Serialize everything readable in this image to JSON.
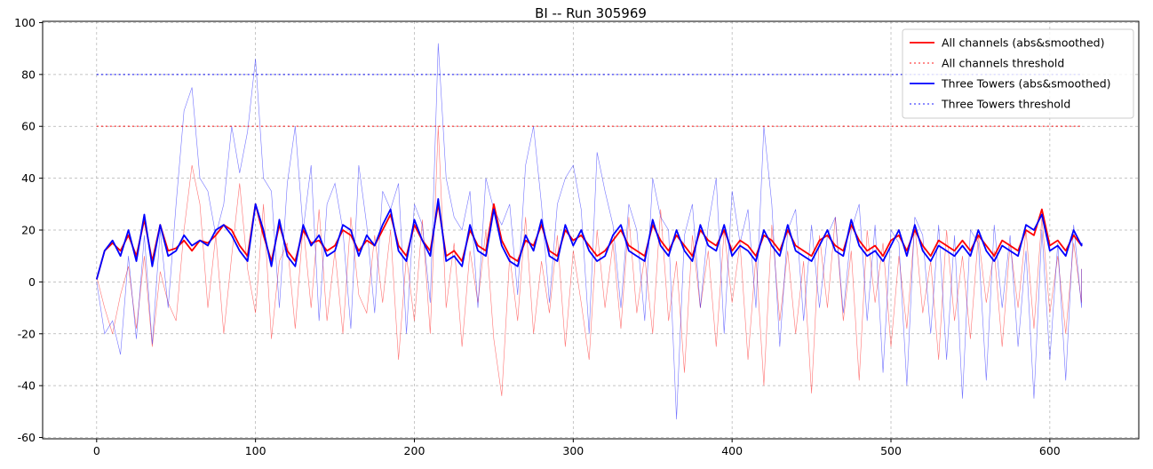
{
  "chart_data": {
    "type": "line",
    "title": "BI -- Run 305969",
    "xlabel": "",
    "ylabel": "",
    "xlim": [
      -34,
      656
    ],
    "ylim": [
      -60.5,
      100.5
    ],
    "xticks": [
      0,
      100,
      200,
      300,
      400,
      500,
      600
    ],
    "yticks": [
      -60,
      -40,
      -20,
      0,
      20,
      40,
      60,
      80,
      100
    ],
    "grid": true,
    "legend_position": "top-right",
    "colors": {
      "all": "#ff0000",
      "towers": "#0000ff"
    },
    "series": [
      {
        "name": "All channels (abs&smoothed)",
        "style": "solid",
        "color": "#ff0000",
        "x_step": 5,
        "values": [
          1,
          12,
          15,
          12,
          18,
          10,
          24,
          8,
          22,
          12,
          13,
          16,
          12,
          16,
          15,
          18,
          22,
          20,
          14,
          10,
          30,
          18,
          8,
          22,
          12,
          8,
          20,
          15,
          16,
          12,
          14,
          20,
          18,
          12,
          16,
          14,
          20,
          26,
          14,
          10,
          22,
          16,
          12,
          30,
          10,
          12,
          8,
          20,
          14,
          12,
          30,
          16,
          10,
          8,
          16,
          14,
          22,
          12,
          10,
          20,
          16,
          18,
          14,
          10,
          12,
          16,
          20,
          14,
          12,
          10,
          22,
          16,
          12,
          18,
          14,
          10,
          20,
          16,
          14,
          20,
          12,
          16,
          14,
          10,
          18,
          16,
          12,
          20,
          14,
          12,
          10,
          16,
          18,
          14,
          12,
          22,
          16,
          12,
          14,
          10,
          16,
          18,
          12,
          20,
          14,
          10,
          16,
          14,
          12,
          16,
          12,
          18,
          14,
          10,
          16,
          14,
          12,
          20,
          18,
          28,
          14,
          16,
          12,
          18,
          14,
          14
        ]
      },
      {
        "name": "All channels threshold",
        "style": "dotted",
        "color": "#ff0000",
        "x": [
          0,
          620
        ],
        "values": [
          60,
          60
        ]
      },
      {
        "name": "Three Towers (abs&smoothed)",
        "style": "solid",
        "color": "#0000ff",
        "x_step": 5,
        "values": [
          1,
          12,
          16,
          10,
          20,
          8,
          26,
          6,
          22,
          10,
          12,
          18,
          14,
          16,
          14,
          20,
          22,
          18,
          12,
          8,
          30,
          20,
          6,
          24,
          10,
          6,
          22,
          14,
          18,
          10,
          12,
          22,
          20,
          10,
          18,
          14,
          22,
          28,
          12,
          8,
          24,
          16,
          10,
          32,
          8,
          10,
          6,
          22,
          12,
          10,
          28,
          14,
          8,
          6,
          18,
          12,
          24,
          10,
          8,
          22,
          14,
          20,
          12,
          8,
          10,
          18,
          22,
          12,
          10,
          8,
          24,
          14,
          10,
          20,
          12,
          8,
          22,
          14,
          12,
          22,
          10,
          14,
          12,
          8,
          20,
          14,
          10,
          22,
          12,
          10,
          8,
          14,
          20,
          12,
          10,
          24,
          14,
          10,
          12,
          8,
          14,
          20,
          10,
          22,
          12,
          8,
          14,
          12,
          10,
          14,
          10,
          20,
          12,
          8,
          14,
          12,
          10,
          22,
          20,
          26,
          12,
          14,
          10,
          20,
          14,
          15
        ]
      },
      {
        "name": "Three Towers threshold",
        "style": "dotted",
        "color": "#0000ff",
        "x": [
          0,
          620
        ],
        "values": [
          80,
          80
        ]
      },
      {
        "name": "",
        "style": "thin",
        "color": "#ff0000",
        "x_step": 5,
        "values": [
          2,
          -10,
          -20,
          -5,
          6,
          -18,
          10,
          -25,
          4,
          -8,
          -15,
          20,
          45,
          30,
          -10,
          18,
          -20,
          10,
          38,
          5,
          -12,
          30,
          -22,
          8,
          15,
          -18,
          22,
          -10,
          28,
          -15,
          12,
          -20,
          25,
          -5,
          -12,
          18,
          -8,
          20,
          -30,
          10,
          -15,
          24,
          -20,
          60,
          -10,
          15,
          -25,
          12,
          -8,
          20,
          -22,
          -44,
          10,
          -15,
          25,
          -20,
          8,
          -12,
          18,
          -25,
          12,
          -8,
          -30,
          20,
          -10,
          15,
          -18,
          25,
          -12,
          10,
          -20,
          28,
          -15,
          8,
          -35,
          18,
          -10,
          12,
          -25,
          20,
          -8,
          15,
          -30,
          10,
          -40,
          22,
          -15,
          12,
          -20,
          8,
          -43,
          18,
          -10,
          25,
          -15,
          12,
          -38,
          20,
          -8,
          15,
          -25,
          10,
          -18,
          22,
          -12,
          8,
          -30,
          20,
          -15,
          10,
          -22,
          18,
          -8,
          12,
          -25,
          15,
          -10,
          20,
          -18,
          25,
          -12,
          10,
          -20,
          15,
          -8,
          5
        ]
      },
      {
        "name": "",
        "style": "thin",
        "color": "#0000ff",
        "x_step": 5,
        "values": [
          0,
          -20,
          -15,
          -28,
          10,
          -22,
          18,
          -24,
          20,
          -10,
          30,
          66,
          75,
          40,
          35,
          18,
          30,
          60,
          42,
          58,
          86,
          40,
          35,
          -10,
          38,
          60,
          20,
          45,
          -15,
          30,
          38,
          20,
          -18,
          45,
          22,
          -12,
          35,
          28,
          38,
          -20,
          30,
          22,
          -8,
          92,
          40,
          25,
          20,
          35,
          -10,
          40,
          28,
          22,
          30,
          -5,
          45,
          60,
          30,
          -8,
          30,
          40,
          45,
          28,
          -20,
          50,
          35,
          22,
          -10,
          30,
          20,
          -15,
          40,
          25,
          20,
          -53,
          18,
          30,
          -10,
          22,
          40,
          -20,
          35,
          15,
          28,
          -10,
          60,
          30,
          -25,
          20,
          28,
          -15,
          22,
          -10,
          18,
          25,
          -12,
          20,
          30,
          -15,
          22,
          -35,
          20,
          15,
          -40,
          25,
          18,
          -20,
          22,
          -30,
          18,
          -45,
          20,
          15,
          -38,
          22,
          -10,
          18,
          -25,
          12,
          -45,
          20,
          -30,
          15,
          -38,
          22,
          -10,
          5
        ]
      }
    ]
  }
}
